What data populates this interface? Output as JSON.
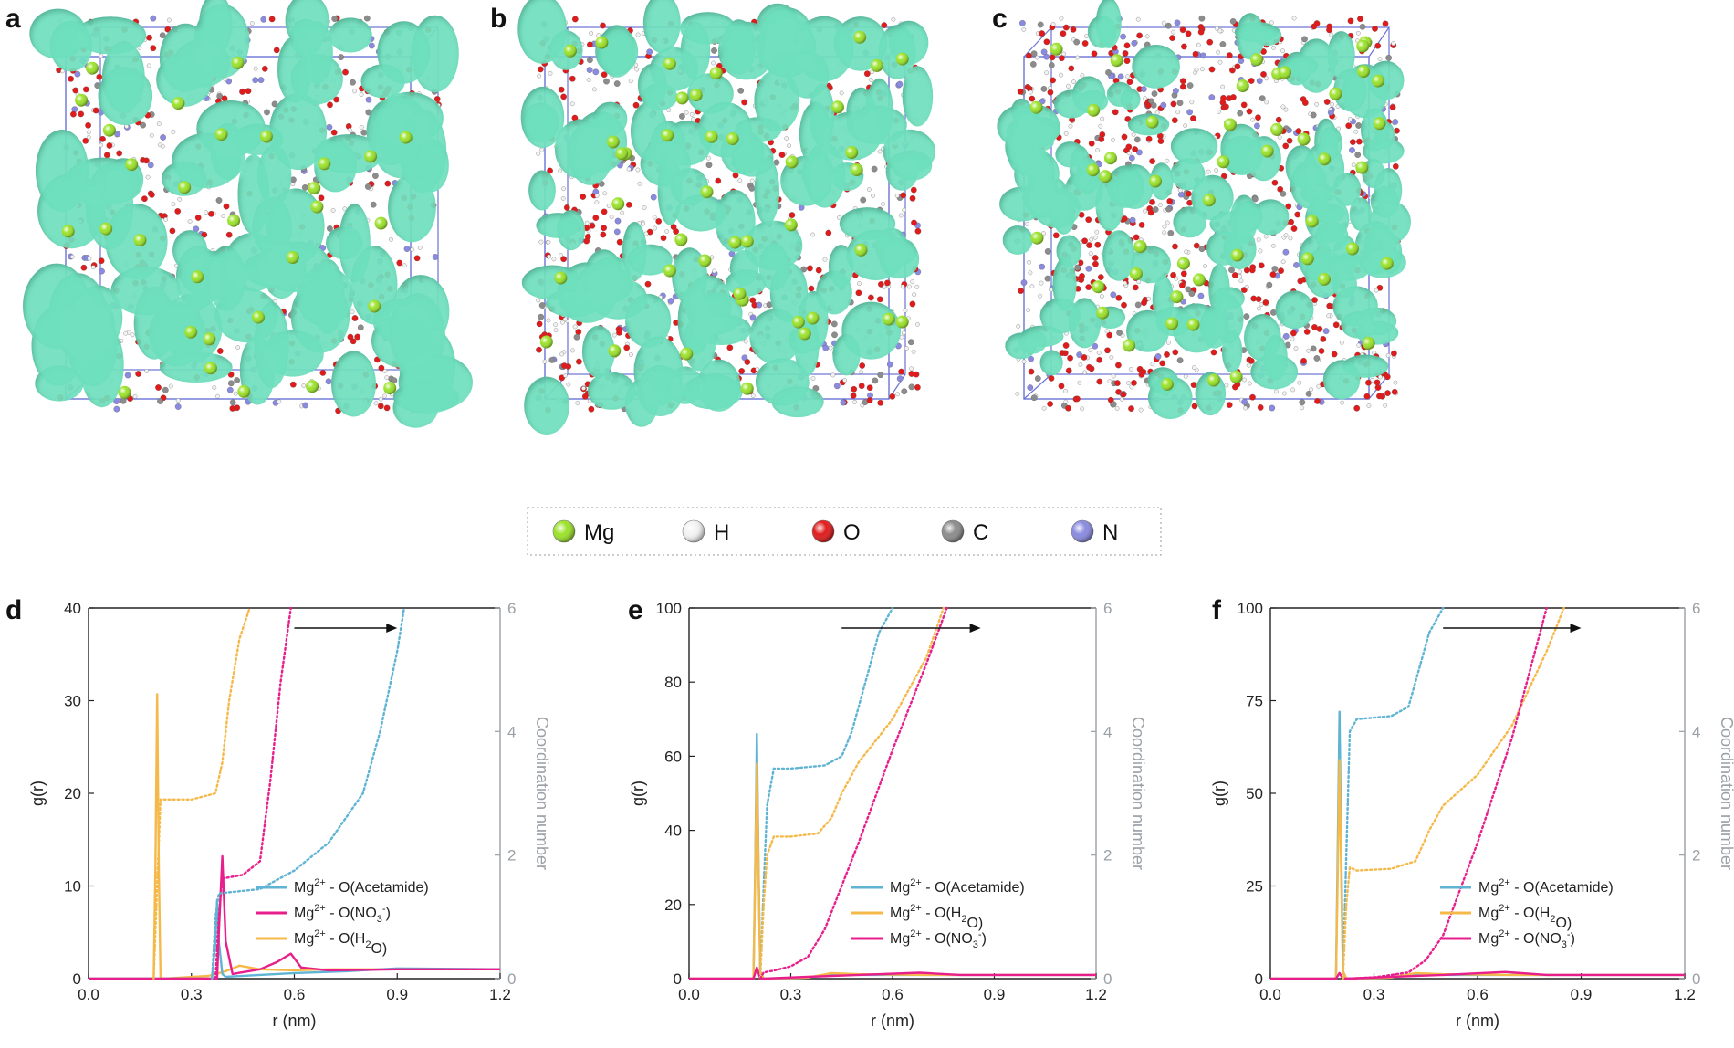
{
  "panels_top": [
    {
      "label": "a",
      "density": 0.55
    },
    {
      "label": "b",
      "density": 0.8
    },
    {
      "label": "c",
      "density": 1.0
    }
  ],
  "atom_legend": [
    {
      "symbol": "Mg",
      "color": "#9be22a"
    },
    {
      "symbol": "H",
      "color": "#f2f2f2"
    },
    {
      "symbol": "O",
      "color": "#e01b1b"
    },
    {
      "symbol": "C",
      "color": "#8c8c8c"
    },
    {
      "symbol": "N",
      "color": "#8a8ae0"
    }
  ],
  "colors": {
    "acetamide": "#5fb3d3",
    "water": "#f5b94a",
    "nitrate": "#e81e8c",
    "right_axis": "#9aa0a6",
    "isosurface": "#6fe0bd"
  },
  "chart_data": [
    {
      "label": "d",
      "type": "line",
      "xlabel": "r (nm)",
      "ylabel": "g(r)",
      "y2label": "Coordination number",
      "xlim": [
        0,
        1.2
      ],
      "ylim": [
        0,
        40
      ],
      "y2lim": [
        0,
        6
      ],
      "xticks": [
        "0.0",
        "0.3",
        "0.6",
        "0.9",
        "1.2"
      ],
      "yticks": [
        "0",
        "10",
        "20",
        "30",
        "40"
      ],
      "y2ticks": [
        "0",
        "2",
        "4",
        "6"
      ],
      "arrow": [
        0.6,
        0.9
      ],
      "legend": [
        {
          "key": "acetamide",
          "main": "Mg",
          "sup": "2+",
          "rest": " - O(Acetamide)"
        },
        {
          "key": "nitrate",
          "main": "Mg",
          "sup": "2+",
          "rest": " - O(NO",
          "sub": "3",
          "sup2": "-",
          "tail": ")"
        },
        {
          "key": "water",
          "main": "Mg",
          "sup": "2+",
          "rest": " - O(H",
          "sub": "2",
          "tail": "O)"
        }
      ],
      "series": [
        {
          "key": "water",
          "kind": "rdf",
          "x": [
            0,
            0.19,
            0.195,
            0.2,
            0.205,
            0.21,
            0.22,
            0.35,
            0.4,
            0.44,
            0.5,
            0.6,
            0.7,
            1.2
          ],
          "y": [
            0,
            0,
            12,
            30.7,
            12,
            0,
            0,
            0.3,
            0.8,
            1.4,
            1.0,
            0.9,
            1.0,
            1.0
          ]
        },
        {
          "key": "acetamide",
          "kind": "rdf",
          "x": [
            0,
            0.36,
            0.37,
            0.375,
            0.38,
            0.39,
            0.4,
            0.5,
            0.6,
            0.75,
            0.9,
            1.2
          ],
          "y": [
            0,
            0,
            4,
            8.5,
            4,
            0.5,
            0.2,
            0.4,
            0.6,
            0.8,
            1.1,
            1.0
          ]
        },
        {
          "key": "nitrate",
          "kind": "rdf",
          "x": [
            0,
            0.375,
            0.38,
            0.39,
            0.4,
            0.42,
            0.5,
            0.55,
            0.59,
            0.62,
            0.7,
            0.9,
            1.2
          ],
          "y": [
            0,
            0,
            5,
            13.2,
            4,
            0.5,
            1.0,
            1.8,
            2.7,
            1.2,
            0.9,
            1.0,
            1.0
          ]
        },
        {
          "key": "water",
          "kind": "cn",
          "x": [
            0.19,
            0.2,
            0.21,
            0.3,
            0.37,
            0.39,
            0.41,
            0.44,
            0.47
          ],
          "y": [
            0,
            1.5,
            2.9,
            2.9,
            3.0,
            3.5,
            4.5,
            5.5,
            6.0
          ]
        },
        {
          "key": "nitrate",
          "kind": "cn",
          "x": [
            0.37,
            0.38,
            0.39,
            0.45,
            0.5,
            0.53,
            0.56,
            0.59
          ],
          "y": [
            0,
            1.0,
            1.62,
            1.68,
            1.9,
            3.2,
            4.8,
            6.0
          ]
        },
        {
          "key": "acetamide",
          "kind": "cn",
          "x": [
            0.36,
            0.37,
            0.38,
            0.5,
            0.6,
            0.7,
            0.8,
            0.85,
            0.9,
            0.92
          ],
          "y": [
            0,
            1.0,
            1.38,
            1.45,
            1.75,
            2.2,
            3.0,
            4.0,
            5.3,
            6.0
          ]
        }
      ]
    },
    {
      "label": "e",
      "type": "line",
      "xlabel": "r (nm)",
      "ylabel": "g(r)",
      "y2label": "Coordination number",
      "xlim": [
        0,
        1.2
      ],
      "ylim": [
        0,
        100
      ],
      "y2lim": [
        0,
        6
      ],
      "xticks": [
        "0.0",
        "0.3",
        "0.6",
        "0.9",
        "1.2"
      ],
      "yticks": [
        "0",
        "20",
        "40",
        "60",
        "80",
        "100"
      ],
      "y2ticks": [
        "0",
        "2",
        "4",
        "6"
      ],
      "arrow": [
        0.45,
        0.86
      ],
      "legend": [
        {
          "key": "acetamide",
          "main": "Mg",
          "sup": "2+",
          "rest": " - O(Acetamide)"
        },
        {
          "key": "water",
          "main": "Mg",
          "sup": "2+",
          "rest": " - O(H",
          "sub": "2",
          "tail": "O)"
        },
        {
          "key": "nitrate",
          "main": "Mg",
          "sup": "2+",
          "rest": " - O(NO",
          "sub": "3",
          "sup2": "-",
          "tail": ")"
        }
      ],
      "series": [
        {
          "key": "acetamide",
          "kind": "rdf",
          "x": [
            0,
            0.19,
            0.195,
            0.2,
            0.205,
            0.21,
            0.22,
            0.35,
            0.42,
            0.5,
            0.7,
            1.2
          ],
          "y": [
            0,
            0,
            30,
            66,
            30,
            2,
            0,
            0.3,
            1.2,
            1.0,
            1.0,
            1.0
          ]
        },
        {
          "key": "water",
          "kind": "rdf",
          "x": [
            0,
            0.19,
            0.195,
            0.2,
            0.205,
            0.21,
            0.22,
            0.35,
            0.42,
            0.5,
            0.7,
            1.2
          ],
          "y": [
            0,
            0,
            28,
            58,
            28,
            2,
            0,
            0.3,
            1.5,
            1.2,
            1.0,
            1.0
          ]
        },
        {
          "key": "nitrate",
          "kind": "rdf",
          "x": [
            0,
            0.19,
            0.2,
            0.21,
            0.22,
            0.35,
            0.5,
            0.68,
            0.8,
            1.2
          ],
          "y": [
            0,
            0,
            3,
            0,
            0,
            0.5,
            1.0,
            1.6,
            1.0,
            1.0
          ]
        },
        {
          "key": "acetamide",
          "kind": "cn",
          "x": [
            0.21,
            0.22,
            0.23,
            0.25,
            0.3,
            0.4,
            0.45,
            0.48,
            0.52,
            0.56,
            0.6
          ],
          "y": [
            0,
            1.5,
            2.8,
            3.4,
            3.4,
            3.45,
            3.6,
            4.0,
            4.8,
            5.6,
            6.0
          ]
        },
        {
          "key": "water",
          "kind": "cn",
          "x": [
            0.21,
            0.22,
            0.23,
            0.25,
            0.3,
            0.38,
            0.42,
            0.45,
            0.5,
            0.6,
            0.7,
            0.75
          ],
          "y": [
            0,
            1.2,
            2.0,
            2.3,
            2.3,
            2.35,
            2.6,
            3.0,
            3.5,
            4.2,
            5.2,
            6.0
          ]
        },
        {
          "key": "nitrate",
          "kind": "cn",
          "x": [
            0.21,
            0.22,
            0.25,
            0.3,
            0.35,
            0.4,
            0.5,
            0.6,
            0.7,
            0.76
          ],
          "y": [
            0,
            0.1,
            0.13,
            0.2,
            0.35,
            0.8,
            2.2,
            3.7,
            5.1,
            6.0
          ]
        }
      ]
    },
    {
      "label": "f",
      "type": "line",
      "xlabel": "r (nm)",
      "ylabel": "g(r)",
      "y2label": "Coordination number",
      "xlim": [
        0,
        1.2
      ],
      "ylim": [
        0,
        100
      ],
      "y2lim": [
        0,
        6
      ],
      "xticks": [
        "0.0",
        "0.3",
        "0.6",
        "0.9",
        "1.2"
      ],
      "yticks": [
        "0",
        "25",
        "50",
        "75",
        "100"
      ],
      "y2ticks": [
        "0",
        "2",
        "4",
        "6"
      ],
      "arrow": [
        0.5,
        0.9
      ],
      "legend": [
        {
          "key": "acetamide",
          "main": "Mg",
          "sup": "2+",
          "rest": " - O(Acetamide)"
        },
        {
          "key": "water",
          "main": "Mg",
          "sup": "2+",
          "rest": " - O(H",
          "sub": "2",
          "tail": "O)"
        },
        {
          "key": "nitrate",
          "main": "Mg",
          "sup": "2+",
          "rest": " - O(NO",
          "sub": "3",
          "sup2": "-",
          "tail": ")"
        }
      ],
      "series": [
        {
          "key": "acetamide",
          "kind": "rdf",
          "x": [
            0,
            0.19,
            0.195,
            0.2,
            0.205,
            0.21,
            0.22,
            0.35,
            0.42,
            0.5,
            0.7,
            1.2
          ],
          "y": [
            0,
            0,
            35,
            72,
            35,
            2,
            0,
            0.3,
            1.2,
            1.0,
            1.0,
            1.0
          ]
        },
        {
          "key": "water",
          "kind": "rdf",
          "x": [
            0,
            0.19,
            0.195,
            0.2,
            0.205,
            0.21,
            0.22,
            0.35,
            0.42,
            0.5,
            0.7,
            1.2
          ],
          "y": [
            0,
            0,
            28,
            59,
            28,
            2,
            0,
            0.3,
            1.5,
            1.2,
            1.0,
            1.0
          ]
        },
        {
          "key": "nitrate",
          "kind": "rdf",
          "x": [
            0,
            0.19,
            0.2,
            0.21,
            0.22,
            0.35,
            0.5,
            0.68,
            0.8,
            1.2
          ],
          "y": [
            0,
            0,
            1.5,
            0,
            0,
            0.5,
            1.0,
            1.8,
            1.0,
            1.0
          ]
        },
        {
          "key": "acetamide",
          "kind": "cn",
          "x": [
            0.21,
            0.22,
            0.23,
            0.25,
            0.35,
            0.4,
            0.43,
            0.46,
            0.5
          ],
          "y": [
            0,
            2.0,
            4.0,
            4.2,
            4.25,
            4.4,
            5.0,
            5.6,
            6.0
          ]
        },
        {
          "key": "water",
          "kind": "cn",
          "x": [
            0.21,
            0.22,
            0.23,
            0.25,
            0.35,
            0.42,
            0.46,
            0.5,
            0.6,
            0.7,
            0.8,
            0.85
          ],
          "y": [
            0,
            1.2,
            1.8,
            1.75,
            1.78,
            1.9,
            2.4,
            2.8,
            3.3,
            4.1,
            5.3,
            6.0
          ]
        },
        {
          "key": "nitrate",
          "kind": "cn",
          "x": [
            0.22,
            0.3,
            0.4,
            0.45,
            0.5,
            0.6,
            0.7,
            0.8
          ],
          "y": [
            0,
            0.02,
            0.1,
            0.3,
            0.7,
            2.2,
            3.9,
            6.0
          ]
        }
      ]
    }
  ]
}
